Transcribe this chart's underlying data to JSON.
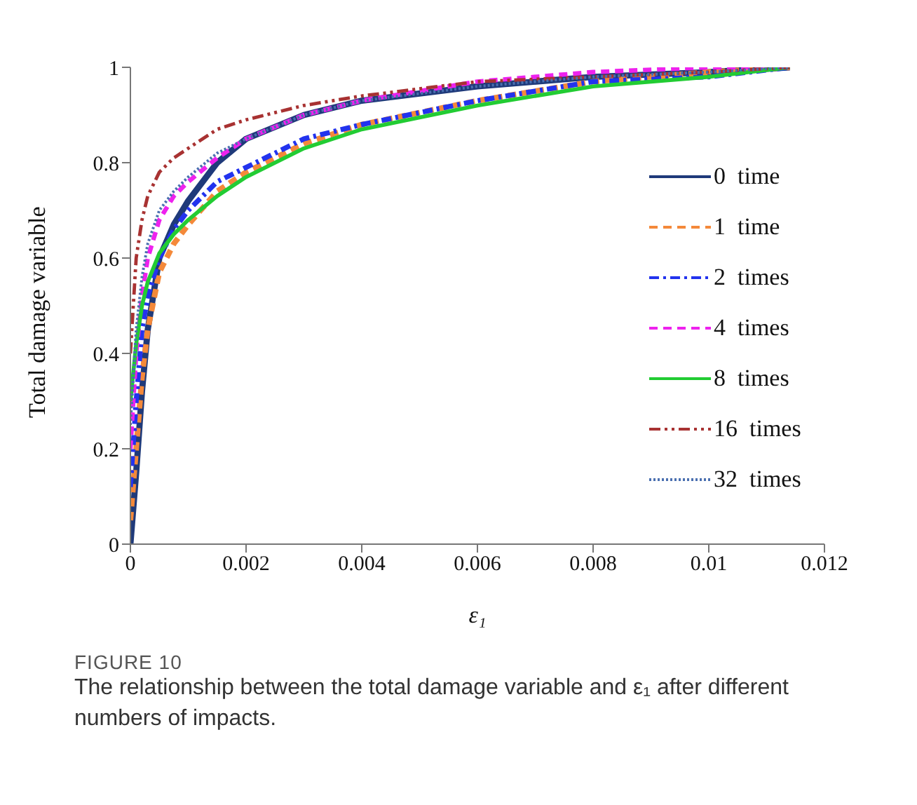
{
  "chart_data": {
    "type": "line",
    "title": "FIGURE 10",
    "subtitle": "The relationship between the total damage variable and ε₁ after different numbers of impacts.",
    "xlabel": "ε₁",
    "ylabel": "Total damage variable",
    "x": [
      0,
      0.0001,
      0.0002,
      0.0003,
      0.0005,
      0.00075,
      0.001,
      0.0015,
      0.002,
      0.003,
      0.004,
      0.006,
      0.008,
      0.01,
      0.0114
    ],
    "series": [
      {
        "name": "0  time",
        "color": "#1f3a7a",
        "line_style": "solid",
        "values": [
          0,
          0.15,
          0.32,
          0.45,
          0.6,
          0.67,
          0.72,
          0.8,
          0.85,
          0.9,
          0.93,
          0.96,
          0.98,
          0.99,
          1
        ]
      },
      {
        "name": "1  time",
        "color": "#f4893a",
        "line_style": "dashed",
        "values": [
          0.05,
          0.2,
          0.35,
          0.45,
          0.57,
          0.63,
          0.67,
          0.74,
          0.78,
          0.84,
          0.88,
          0.93,
          0.97,
          0.99,
          1
        ]
      },
      {
        "name": "2  times",
        "color": "#2233ee",
        "line_style": "dashdot",
        "values": [
          0.12,
          0.3,
          0.45,
          0.52,
          0.6,
          0.66,
          0.7,
          0.76,
          0.79,
          0.85,
          0.88,
          0.93,
          0.97,
          0.98,
          1
        ]
      },
      {
        "name": "4  times",
        "color": "#ee22ee",
        "line_style": "dashed",
        "values": [
          0.2,
          0.4,
          0.52,
          0.6,
          0.68,
          0.73,
          0.76,
          0.81,
          0.85,
          0.9,
          0.93,
          0.97,
          0.99,
          1,
          1
        ]
      },
      {
        "name": "8  times",
        "color": "#22cc33",
        "line_style": "solid",
        "values": [
          0.3,
          0.42,
          0.5,
          0.55,
          0.61,
          0.65,
          0.68,
          0.73,
          0.77,
          0.83,
          0.87,
          0.92,
          0.96,
          0.98,
          1
        ]
      },
      {
        "name": "16  times",
        "color": "#a83232",
        "line_style": "dashdotdot",
        "values": [
          0.4,
          0.6,
          0.68,
          0.73,
          0.78,
          0.81,
          0.83,
          0.87,
          0.89,
          0.92,
          0.94,
          0.97,
          0.98,
          0.99,
          1
        ]
      },
      {
        "name": "32  times",
        "color": "#4a6fb0",
        "line_style": "dotted",
        "values": [
          0.25,
          0.45,
          0.56,
          0.63,
          0.7,
          0.74,
          0.77,
          0.82,
          0.85,
          0.9,
          0.93,
          0.96,
          0.98,
          0.99,
          1
        ]
      }
    ],
    "xlim": [
      0,
      0.012
    ],
    "xticks": [
      0,
      0.002,
      0.004,
      0.006,
      0.008,
      0.01,
      0.012
    ],
    "ylim": [
      0,
      1
    ],
    "yticks": [
      0,
      0.2,
      0.4,
      0.6,
      0.8,
      1
    ],
    "grid": false,
    "legend": "right",
    "marker": "none"
  }
}
